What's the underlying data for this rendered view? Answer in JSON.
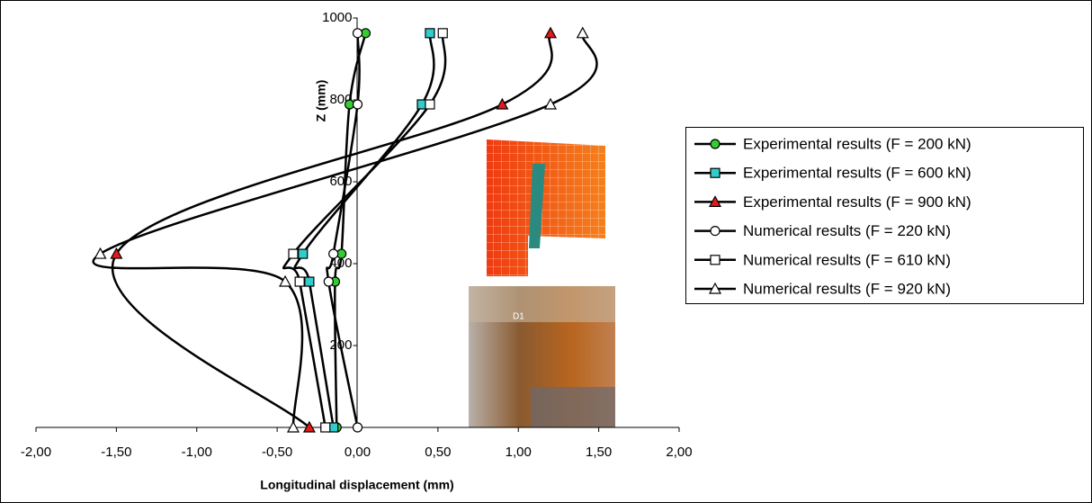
{
  "chart_data": {
    "type": "line",
    "x_label": "Longitudinal displacement (mm)",
    "y_label": "Z (mm)",
    "xlim": [
      -2,
      2
    ],
    "ylim": [
      0,
      1000
    ],
    "xticks": [
      {
        "value": -2,
        "label": "-2,00"
      },
      {
        "value": -1.5,
        "label": "-1,50"
      },
      {
        "value": -1,
        "label": "-1,00"
      },
      {
        "value": -0.5,
        "label": "-0,50"
      },
      {
        "value": 0,
        "label": "0,00"
      },
      {
        "value": 0.5,
        "label": "0,50"
      },
      {
        "value": 1,
        "label": "1,00"
      },
      {
        "value": 1.5,
        "label": "1,50"
      },
      {
        "value": 2,
        "label": "2,00"
      }
    ],
    "yticks": [
      200,
      400,
      600,
      800,
      1000
    ],
    "series": [
      {
        "name": "Experimental results (F = 200 kN)",
        "color": "#33cc33",
        "marker": "circle",
        "x": [
          0.05,
          -0.05,
          -0.1,
          -0.14,
          -0.13
        ],
        "values": [
          963,
          789,
          424,
          356,
          0
        ]
      },
      {
        "name": "Experimental results (F = 600 kN)",
        "color": "#33cccc",
        "marker": "square",
        "x": [
          0.45,
          0.4,
          -0.34,
          -0.3,
          -0.15
        ],
        "values": [
          963,
          789,
          424,
          356,
          0
        ]
      },
      {
        "name": "Experimental results (F = 900 kN)",
        "color": "#e31a1a",
        "marker": "triangle",
        "x": [
          1.2,
          0.9,
          -1.5,
          -0.3
        ],
        "values": [
          963,
          789,
          424,
          0
        ]
      },
      {
        "name": "Numerical results (F = 220 kN)",
        "color": "#ffffff",
        "marker": "circle",
        "x": [
          0.0,
          0.0,
          -0.15,
          -0.18,
          0.0
        ],
        "values": [
          963,
          789,
          424,
          356,
          0
        ]
      },
      {
        "name": "Numerical results (F = 610 kN)",
        "color": "#ffffff",
        "marker": "square",
        "x": [
          0.53,
          0.45,
          -0.4,
          -0.36,
          -0.2
        ],
        "values": [
          963,
          789,
          424,
          356,
          0
        ]
      },
      {
        "name": "Numerical results (F = 920 kN)",
        "color": "#ffffff",
        "marker": "triangle",
        "x": [
          1.4,
          1.2,
          -1.6,
          -0.45,
          -0.4
        ],
        "values": [
          963,
          789,
          424,
          356,
          0
        ]
      }
    ]
  }
}
